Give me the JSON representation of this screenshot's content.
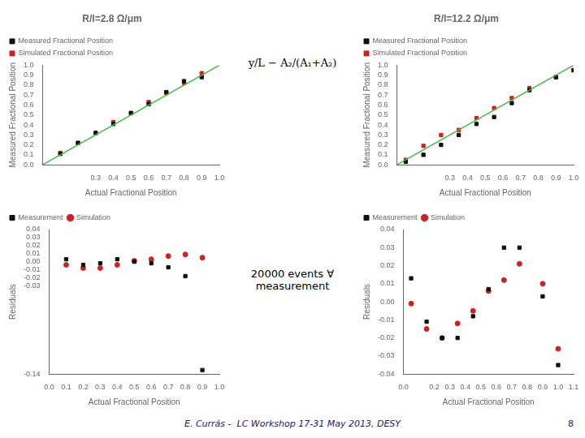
{
  "chart_data": [
    {
      "type": "scatter",
      "title": "R/l=2.8 Ω/μm",
      "x_label": "Actual Fractional Position",
      "y_label": "Measured Fractional Position",
      "annotations": [
        "y/L − A₂/(A₁+A₂)"
      ],
      "xlim": [
        0.0,
        1.0
      ],
      "ylim": [
        0.0,
        1.0
      ],
      "xticks": [
        0.3,
        0.4,
        0.5,
        0.6,
        0.7,
        0.8,
        0.9,
        {
          "value": 1.0,
          "label": "1.0"
        }
      ],
      "yticks": [
        {
          "value": 0.0,
          "label": "0.0"
        },
        0.1,
        0.2,
        0.3,
        0.4,
        0.5,
        0.6,
        0.7,
        0.8,
        0.9,
        {
          "value": 1.0,
          "label": "1.0"
        }
      ],
      "grid": false,
      "legend": "upper left",
      "series": [
        {
          "type": "line",
          "color": "#44bb44",
          "line_style": "solid",
          "x": [
            0.0,
            1.0
          ],
          "values": [
            0.0,
            1.0
          ]
        },
        {
          "name": "Measured Fractional Position",
          "color": "#111111",
          "marker": "square",
          "x": [
            0.1,
            0.2,
            0.3,
            0.4,
            0.5,
            0.6,
            0.7,
            0.8,
            0.9
          ],
          "values": [
            0.11,
            0.22,
            0.32,
            0.41,
            0.52,
            0.61,
            0.73,
            0.84,
            0.88
          ]
        },
        {
          "name": "Simulated Fractional Position",
          "color": "#cc2222",
          "marker": "square",
          "x": [
            0.1,
            0.2,
            0.3,
            0.4,
            0.5,
            0.6,
            0.7,
            0.8,
            0.9
          ],
          "values": [
            0.12,
            0.22,
            0.32,
            0.43,
            0.52,
            0.63,
            0.72,
            0.82,
            0.92
          ]
        }
      ]
    },
    {
      "type": "scatter",
      "title": "R/l=12.2 Ω/μm",
      "x_label": "Actual Fractional Position",
      "y_label": "Measured Fractional Position",
      "xlim": [
        0.0,
        1.0
      ],
      "ylim": [
        0.0,
        1.0
      ],
      "xticks": [
        0.3,
        0.4,
        0.5,
        0.6,
        0.7,
        0.8,
        0.9,
        {
          "value": 1.0,
          "label": "1.0"
        }
      ],
      "yticks": [
        {
          "value": 0.0,
          "label": "0.0"
        },
        0.1,
        0.2,
        0.3,
        0.4,
        0.5,
        0.6,
        0.7,
        0.8,
        0.9,
        {
          "value": 1.0,
          "label": "1.0"
        }
      ],
      "grid": false,
      "legend": "upper left",
      "series": [
        {
          "type": "line",
          "color": "#44bb44",
          "line_style": "solid",
          "x": [
            0.0,
            1.0
          ],
          "values": [
            0.0,
            1.0
          ]
        },
        {
          "name": "Measured Fractional Position",
          "color": "#111111",
          "marker": "square",
          "x": [
            0.05,
            0.15,
            0.25,
            0.35,
            0.45,
            0.55,
            0.65,
            0.75,
            0.9,
            1.0
          ],
          "values": [
            0.03,
            0.1,
            0.2,
            0.3,
            0.41,
            0.48,
            0.62,
            0.75,
            0.88,
            0.95
          ]
        },
        {
          "name": "Simulated Fractional Position",
          "color": "#cc2222",
          "marker": "square",
          "x": [
            0.05,
            0.15,
            0.25,
            0.35,
            0.45,
            0.55,
            0.65,
            0.75,
            0.9,
            1.0
          ],
          "values": [
            0.05,
            0.19,
            0.3,
            0.35,
            0.47,
            0.57,
            0.67,
            0.77,
            0.88,
            0.95
          ]
        }
      ]
    },
    {
      "type": "scatter",
      "x_label": "Actual Fractional Position",
      "y_label": "Residuals",
      "annotations": [
        "20000 events ∀\nmeasurement"
      ],
      "xlim": [
        0.0,
        1.0
      ],
      "ylim": [
        -0.14,
        0.04
      ],
      "xticks": [
        {
          "value": 0.0,
          "label": "0.0"
        },
        0.1,
        0.2,
        0.3,
        0.4,
        0.5,
        0.6,
        0.7,
        0.8,
        0.9,
        {
          "value": 1.0,
          "label": "1.0"
        }
      ],
      "yticks": [
        -0.14,
        -0.03,
        -0.02,
        -0.01,
        {
          "value": 0.0,
          "label": "0.00"
        },
        0.01,
        0.02,
        0.03,
        0.04
      ],
      "grid": false,
      "legend": "upper left",
      "series": [
        {
          "name": "Measurement",
          "color": "#111111",
          "marker": "square",
          "x": [
            0.1,
            0.2,
            0.3,
            0.4,
            0.5,
            0.6,
            0.7,
            0.8,
            0.9
          ],
          "values": [
            0.003,
            -0.004,
            -0.002,
            0.003,
            0.0,
            -0.002,
            -0.007,
            -0.018,
            -0.135
          ]
        },
        {
          "name": "Simulation",
          "color": "#cc2222",
          "marker": "circle",
          "x": [
            0.1,
            0.2,
            0.3,
            0.4,
            0.5,
            0.6,
            0.7,
            0.8,
            0.9
          ],
          "values": [
            -0.004,
            -0.008,
            -0.008,
            -0.004,
            0.001,
            0.003,
            0.007,
            0.009,
            0.005
          ]
        }
      ]
    },
    {
      "type": "scatter",
      "x_label": "Actual Fractional Position",
      "y_label": "Residuals",
      "annotations": [
        "E. Currás -  LC Workshop 17-31 May 2013, DESY",
        "8"
      ],
      "xlim": [
        0.0,
        1.1
      ],
      "ylim": [
        -0.04,
        0.04
      ],
      "xticks": [
        {
          "value": 0.0,
          "label": "0.0"
        },
        0.2,
        0.3,
        0.4,
        0.5,
        0.6,
        0.7,
        0.8,
        0.9,
        {
          "value": 1.0,
          "label": "1.0"
        },
        1.1
      ],
      "yticks": [
        -0.04,
        -0.03,
        -0.02,
        -0.01,
        {
          "value": 0.0,
          "label": "0.00"
        },
        0.01,
        0.02,
        0.03,
        0.04
      ],
      "grid": false,
      "legend": "upper left",
      "series": [
        {
          "name": "Measurement",
          "color": "#111111",
          "marker": "square",
          "x": [
            0.05,
            0.15,
            0.25,
            0.35,
            0.45,
            0.55,
            0.65,
            0.75,
            0.9,
            1.0
          ],
          "values": [
            0.013,
            -0.011,
            -0.02,
            -0.02,
            -0.008,
            0.007,
            0.03,
            0.03,
            0.003,
            -0.035
          ]
        },
        {
          "name": "Simulation",
          "color": "#cc2222",
          "marker": "circle",
          "x": [
            0.05,
            0.15,
            0.25,
            0.35,
            0.45,
            0.55,
            0.65,
            0.75,
            0.9,
            1.0
          ],
          "values": [
            -0.001,
            -0.015,
            -0.02,
            -0.012,
            -0.005,
            0.006,
            0.012,
            0.021,
            0.01,
            -0.026
          ]
        }
      ]
    }
  ]
}
